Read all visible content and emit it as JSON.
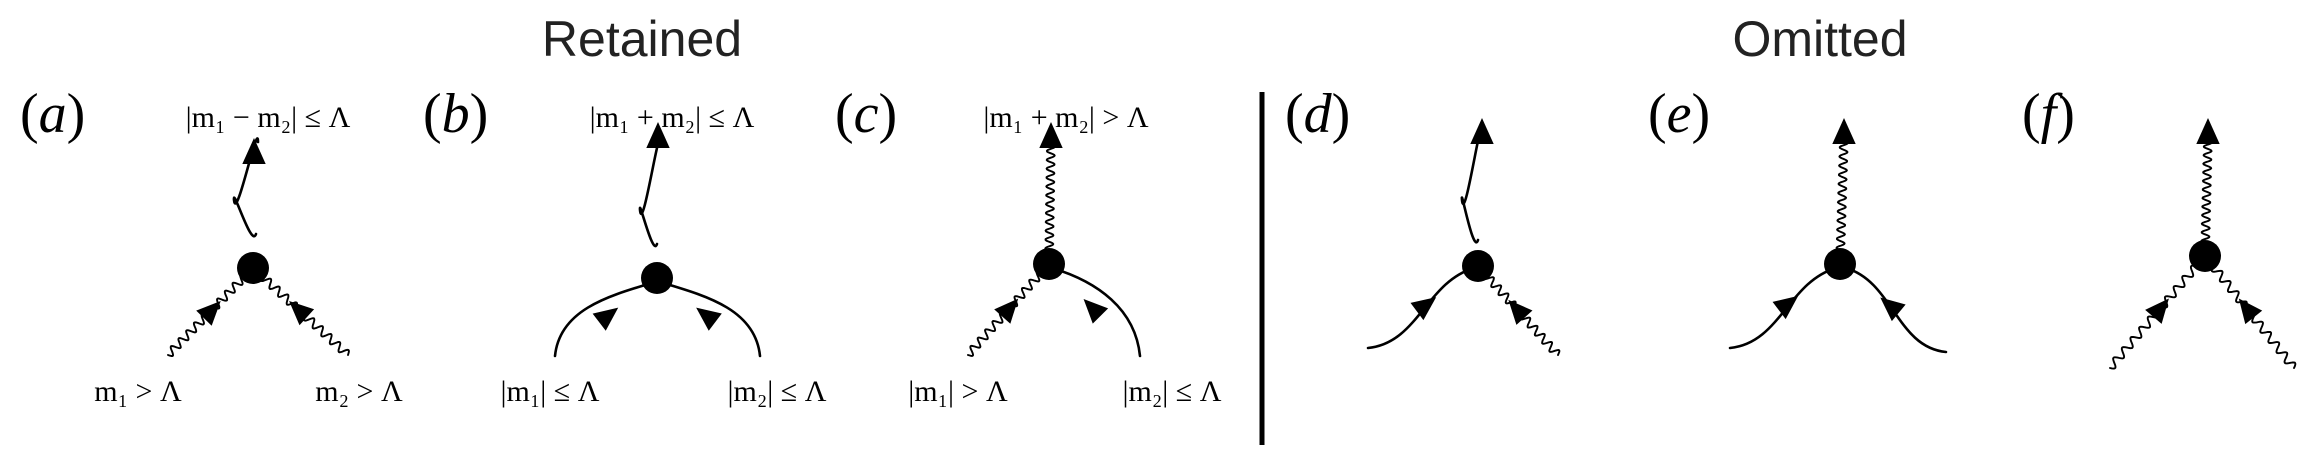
{
  "headings": {
    "retained": "Retained",
    "omitted": "Omitted"
  },
  "panels": [
    {
      "id": "a",
      "label": "a",
      "top_label": "|m₁ − m₂| ≤ Λ",
      "left_label": "m₁ > Λ",
      "right_label": "m₂ > Λ",
      "legs": {
        "top": "solid",
        "left": "wavy",
        "right": "wavy"
      }
    },
    {
      "id": "b",
      "label": "b",
      "top_label": "|m₁ + m₂| ≤ Λ",
      "left_label": "|m₁| ≤ Λ",
      "right_label": "|m₂| ≤ Λ",
      "legs": {
        "top": "solid",
        "left": "solid",
        "right": "solid"
      }
    },
    {
      "id": "c",
      "label": "c",
      "top_label": "|m₁ + m₂| > Λ",
      "left_label": "|m₁| > Λ",
      "right_label": "|m₂| ≤ Λ",
      "legs": {
        "top": "wavy",
        "left": "wavy",
        "right": "solid"
      }
    },
    {
      "id": "d",
      "label": "d",
      "top_label": "",
      "left_label": "",
      "right_label": "",
      "legs": {
        "top": "solid",
        "left": "solid",
        "right": "wavy"
      }
    },
    {
      "id": "e",
      "label": "e",
      "top_label": "",
      "left_label": "",
      "right_label": "",
      "legs": {
        "top": "wavy",
        "left": "solid",
        "right": "solid"
      }
    },
    {
      "id": "f",
      "label": "f",
      "top_label": "",
      "left_label": "",
      "right_label": "",
      "legs": {
        "top": "wavy",
        "left": "wavy",
        "right": "wavy"
      }
    }
  ]
}
